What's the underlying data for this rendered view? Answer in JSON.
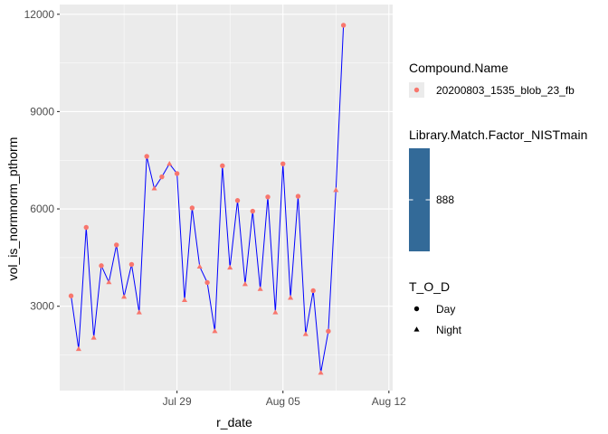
{
  "chart_data": {
    "type": "line",
    "x_label": "r_date",
    "y_label": "vol_is_normnorm_pthorm",
    "x_ticks": [
      "Jul 29",
      "Aug 05",
      "Aug 12"
    ],
    "y_ticks": [
      3000,
      6000,
      9000,
      12000
    ],
    "ylim": [
      400,
      12300
    ],
    "xlim": [
      "2020-07-21T06:00",
      "2020-08-12T06:00"
    ],
    "grid": true,
    "line_color": "#0000FF",
    "point_color": "#F8766D",
    "series": [
      {
        "points": [
          {
            "x": "2020-07-22T00:00",
            "y": 3320,
            "tod": "Day"
          },
          {
            "x": "2020-07-22T12:00",
            "y": 1680,
            "tod": "Night"
          },
          {
            "x": "2020-07-23T00:00",
            "y": 5430,
            "tod": "Day"
          },
          {
            "x": "2020-07-23T12:00",
            "y": 2030,
            "tod": "Night"
          },
          {
            "x": "2020-07-24T00:00",
            "y": 4250,
            "tod": "Day"
          },
          {
            "x": "2020-07-24T12:00",
            "y": 3740,
            "tod": "Night"
          },
          {
            "x": "2020-07-25T00:00",
            "y": 4890,
            "tod": "Day"
          },
          {
            "x": "2020-07-25T12:00",
            "y": 3290,
            "tod": "Night"
          },
          {
            "x": "2020-07-26T00:00",
            "y": 4290,
            "tod": "Day"
          },
          {
            "x": "2020-07-26T12:00",
            "y": 2810,
            "tod": "Night"
          },
          {
            "x": "2020-07-27T00:00",
            "y": 7620,
            "tod": "Day"
          },
          {
            "x": "2020-07-27T12:00",
            "y": 6630,
            "tod": "Night"
          },
          {
            "x": "2020-07-28T00:00",
            "y": 6990,
            "tod": "Day"
          },
          {
            "x": "2020-07-28T12:00",
            "y": 7390,
            "tod": "Night"
          },
          {
            "x": "2020-07-29T00:00",
            "y": 7090,
            "tod": "Day"
          },
          {
            "x": "2020-07-29T12:00",
            "y": 3190,
            "tod": "Night"
          },
          {
            "x": "2020-07-30T00:00",
            "y": 6030,
            "tod": "Day"
          },
          {
            "x": "2020-07-30T12:00",
            "y": 4220,
            "tod": "Night"
          },
          {
            "x": "2020-07-31T00:00",
            "y": 3730,
            "tod": "Day"
          },
          {
            "x": "2020-07-31T12:00",
            "y": 2230,
            "tod": "Night"
          },
          {
            "x": "2020-08-01T00:00",
            "y": 7330,
            "tod": "Day"
          },
          {
            "x": "2020-08-01T12:00",
            "y": 4190,
            "tod": "Night"
          },
          {
            "x": "2020-08-02T00:00",
            "y": 6260,
            "tod": "Day"
          },
          {
            "x": "2020-08-02T12:00",
            "y": 3680,
            "tod": "Night"
          },
          {
            "x": "2020-08-03T00:00",
            "y": 5930,
            "tod": "Day"
          },
          {
            "x": "2020-08-03T12:00",
            "y": 3530,
            "tod": "Night"
          },
          {
            "x": "2020-08-04T00:00",
            "y": 6370,
            "tod": "Day"
          },
          {
            "x": "2020-08-04T12:00",
            "y": 2810,
            "tod": "Night"
          },
          {
            "x": "2020-08-05T00:00",
            "y": 7390,
            "tod": "Day"
          },
          {
            "x": "2020-08-05T12:00",
            "y": 3260,
            "tod": "Night"
          },
          {
            "x": "2020-08-06T00:00",
            "y": 6390,
            "tod": "Day"
          },
          {
            "x": "2020-08-06T12:00",
            "y": 2140,
            "tod": "Night"
          },
          {
            "x": "2020-08-07T00:00",
            "y": 3480,
            "tod": "Day"
          },
          {
            "x": "2020-08-07T12:00",
            "y": 950,
            "tod": "Night"
          },
          {
            "x": "2020-08-08T00:00",
            "y": 2230,
            "tod": "Day"
          },
          {
            "x": "2020-08-08T12:00",
            "y": 6580,
            "tod": "Night"
          },
          {
            "x": "2020-08-09T00:00",
            "y": 11660,
            "tod": "Day"
          }
        ]
      }
    ],
    "legend_placement": "right",
    "legends": [
      {
        "title": "Compound.Name",
        "kind": "point",
        "items": [
          {
            "label": "20200803_1535_blob_23_fb",
            "color": "#F8766D"
          }
        ]
      },
      {
        "title": "Library.Match.Factor_NISTmain",
        "kind": "colorbar",
        "color": "#336A98",
        "items": [
          {
            "label": "888"
          }
        ]
      },
      {
        "title": "T_O_D",
        "kind": "shape",
        "items": [
          {
            "label": "Day",
            "shape": "circle"
          },
          {
            "label": "Night",
            "shape": "triangle"
          }
        ]
      }
    ]
  }
}
